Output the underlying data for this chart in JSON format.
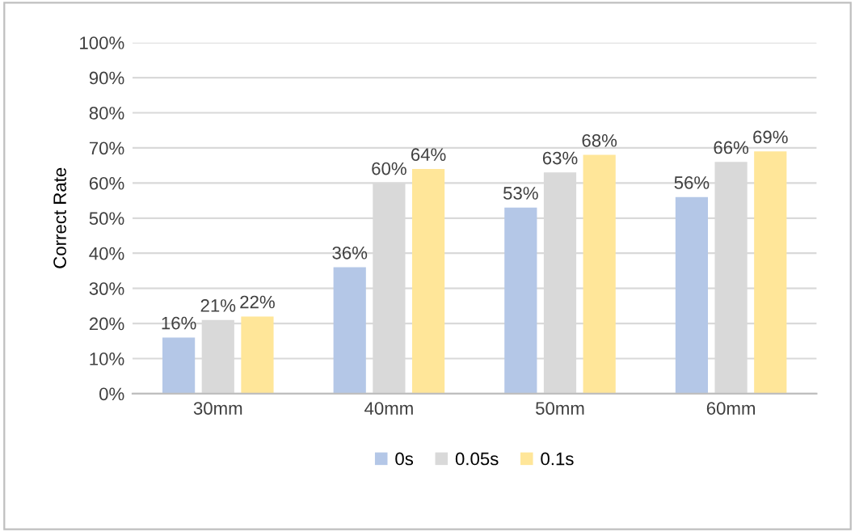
{
  "chart_data": {
    "type": "bar",
    "ylabel": "Correct Rate",
    "categories": [
      "30mm",
      "40mm",
      "50mm",
      "60mm"
    ],
    "series": [
      {
        "name": "0s",
        "color": "#b4c7e7",
        "values": [
          16,
          36,
          53,
          56
        ],
        "value_labels": [
          "16%",
          "36%",
          "53%",
          "56%"
        ]
      },
      {
        "name": "0.05s",
        "color": "#d9d9d9",
        "values": [
          21,
          60,
          63,
          66
        ],
        "value_labels": [
          "21%",
          "60%",
          "63%",
          "66%"
        ]
      },
      {
        "name": "0.1s",
        "color": "#ffe699",
        "values": [
          22,
          64,
          68,
          69
        ],
        "value_labels": [
          "22%",
          "64%",
          "68%",
          "69%"
        ]
      }
    ],
    "ylim": [
      0,
      100
    ],
    "yticks": [
      {
        "value": 0,
        "label": "0%"
      },
      {
        "value": 10,
        "label": "10%"
      },
      {
        "value": 20,
        "label": "20%"
      },
      {
        "value": 30,
        "label": "30%"
      },
      {
        "value": 40,
        "label": "40%"
      },
      {
        "value": 50,
        "label": "50%"
      },
      {
        "value": 60,
        "label": "60%"
      },
      {
        "value": 70,
        "label": "70%"
      },
      {
        "value": 80,
        "label": "80%"
      },
      {
        "value": 90,
        "label": "90%"
      },
      {
        "value": 100,
        "label": "100%"
      }
    ],
    "grid": "y",
    "legend": "bottom"
  }
}
